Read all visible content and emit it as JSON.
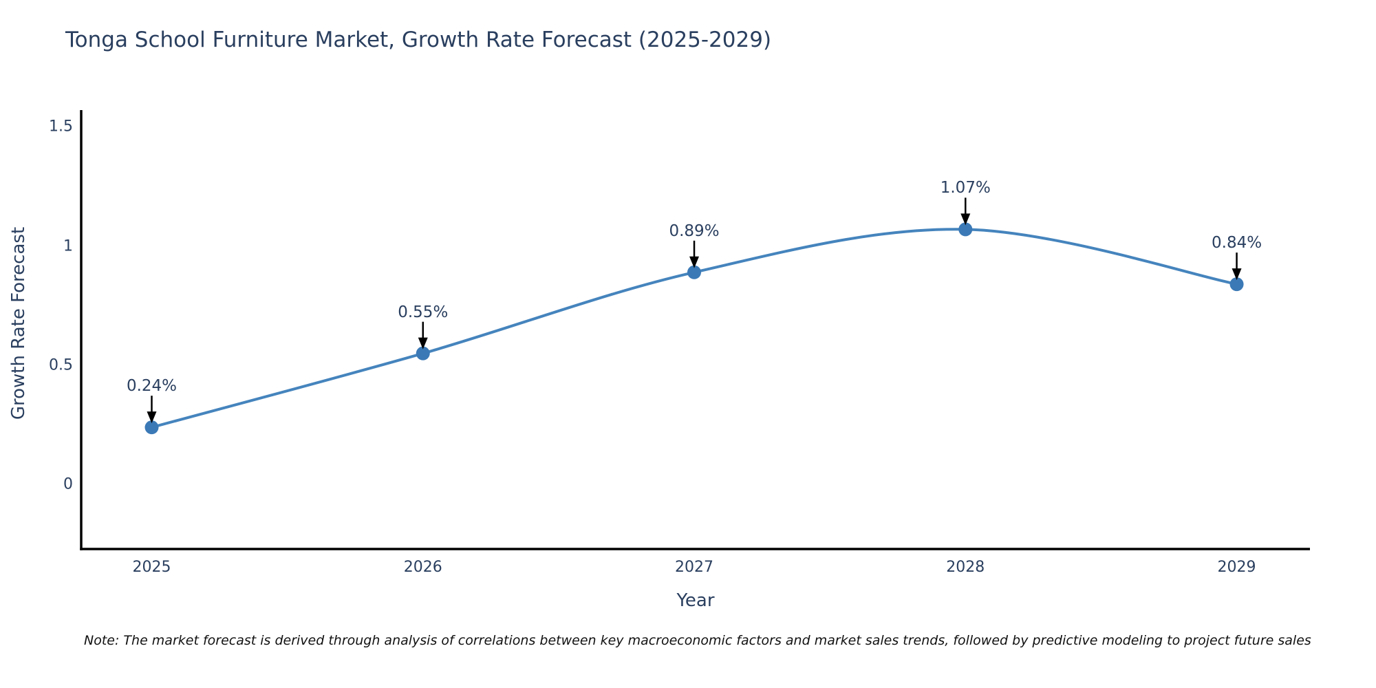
{
  "title": "Tonga School Furniture Market, Growth Rate Forecast (2025-2029)",
  "note": "Note: The market forecast is derived through analysis of correlations between key macroeconomic factors and market sales trends, followed by predictive modeling to project future sales",
  "chart_data": {
    "type": "line",
    "title": "Tonga School Furniture Market, Growth Rate Forecast (2025-2029)",
    "xlabel": "Year",
    "ylabel": "Growth Rate Forecast",
    "x": [
      2025,
      2026,
      2027,
      2028,
      2029
    ],
    "series": [
      {
        "name": "Growth Rate Forecast",
        "values": [
          0.24,
          0.55,
          0.89,
          1.07,
          0.84
        ]
      }
    ],
    "point_labels": [
      "0.24%",
      "0.55%",
      "0.89%",
      "1.07%",
      "0.84%"
    ],
    "xtick_labels": [
      "2025",
      "2026",
      "2027",
      "2028",
      "2029"
    ],
    "yticks": [
      0,
      0.5,
      1,
      1.5
    ],
    "ytick_labels": [
      "0",
      "0.5",
      "1",
      "1.5"
    ],
    "xlim": [
      2024.74,
      2029.27
    ],
    "ylim": [
      -0.27,
      1.57
    ],
    "grid": false,
    "legend": "none",
    "line_shape": "spline",
    "colors": {
      "line": "#4584bd",
      "marker": "#3b79b6",
      "axis": "#000000",
      "arrow": "#000000",
      "text": "#2a3f5f"
    }
  }
}
